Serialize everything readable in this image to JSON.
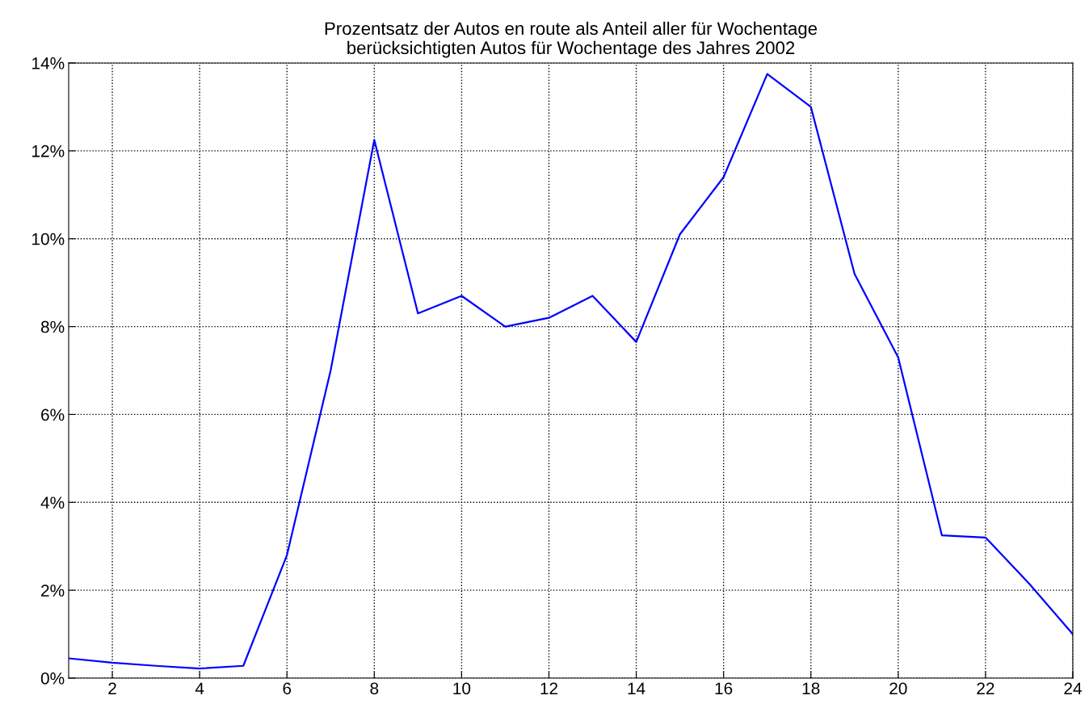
{
  "chart_data": {
    "type": "line",
    "title": "Prozentsatz der Autos en route als Anteil aller für Wochentage\nberücksichtigten Autos für Wochentage des Jahres 2002",
    "x": [
      1,
      2,
      3,
      4,
      5,
      6,
      7,
      8,
      9,
      10,
      11,
      12,
      13,
      14,
      15,
      16,
      17,
      18,
      19,
      20,
      21,
      22,
      23,
      24
    ],
    "series": [
      {
        "color": "#0000ff",
        "values": [
          0.45,
          0.35,
          0.28,
          0.22,
          0.28,
          2.8,
          7.0,
          12.25,
          8.3,
          8.7,
          8.0,
          8.2,
          8.7,
          7.65,
          10.1,
          11.4,
          13.75,
          13.0,
          9.2,
          7.3,
          3.25,
          3.2,
          2.15,
          1.0
        ]
      }
    ],
    "xlim": [
      1,
      24
    ],
    "xticks": [
      2,
      4,
      6,
      8,
      10,
      12,
      14,
      16,
      18,
      20,
      22,
      24
    ],
    "ylim": [
      0,
      14
    ],
    "yticks": [
      {
        "value": 0,
        "label": "0%"
      },
      {
        "value": 2,
        "label": "2%"
      },
      {
        "value": 4,
        "label": "4%"
      },
      {
        "value": 6,
        "label": "6%"
      },
      {
        "value": 8,
        "label": "8%"
      },
      {
        "value": 10,
        "label": "10%"
      },
      {
        "value": 12,
        "label": "12%"
      },
      {
        "value": 14,
        "label": "14%"
      }
    ],
    "grid": true,
    "line_style": "solid",
    "marker": "none"
  }
}
